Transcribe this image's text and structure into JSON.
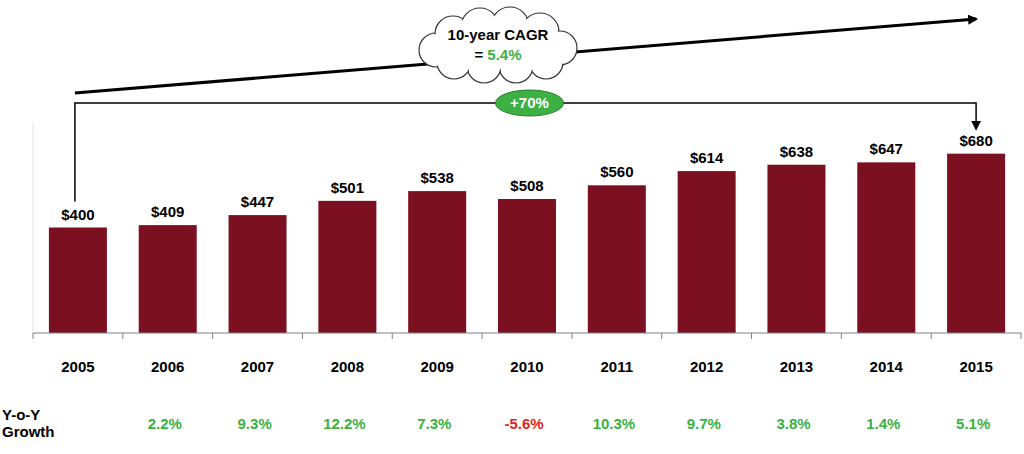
{
  "chart_data": {
    "type": "bar",
    "categories": [
      "2005",
      "2006",
      "2007",
      "2008",
      "2009",
      "2010",
      "2011",
      "2012",
      "2013",
      "2014",
      "2015"
    ],
    "values": [
      400,
      409,
      447,
      501,
      538,
      508,
      560,
      614,
      638,
      647,
      680
    ],
    "value_labels": [
      "$400",
      "$409",
      "$447",
      "$501",
      "$538",
      "$508",
      "$560",
      "$614",
      "$638",
      "$647",
      "$680"
    ],
    "color": "#7b1020",
    "ylim": [
      0,
      800
    ],
    "yticks": [],
    "grid": false,
    "data_labels": true,
    "tick_labels": "x",
    "annotations": [
      "10-year CAGR",
      "= 5.4%",
      "+70%"
    ],
    "yoy_growth": {
      "label": "Y-o-Y Growth",
      "values": [
        2.2,
        9.3,
        12.2,
        7.3,
        -5.6,
        10.3,
        9.7,
        3.8,
        1.4,
        5.1
      ],
      "value_labels": [
        "2.2%",
        "9.3%",
        "12.2%",
        "7.3%",
        "-5.6%",
        "10.3%",
        "9.7%",
        "3.8%",
        "1.4%",
        "5.1%"
      ]
    }
  }
}
